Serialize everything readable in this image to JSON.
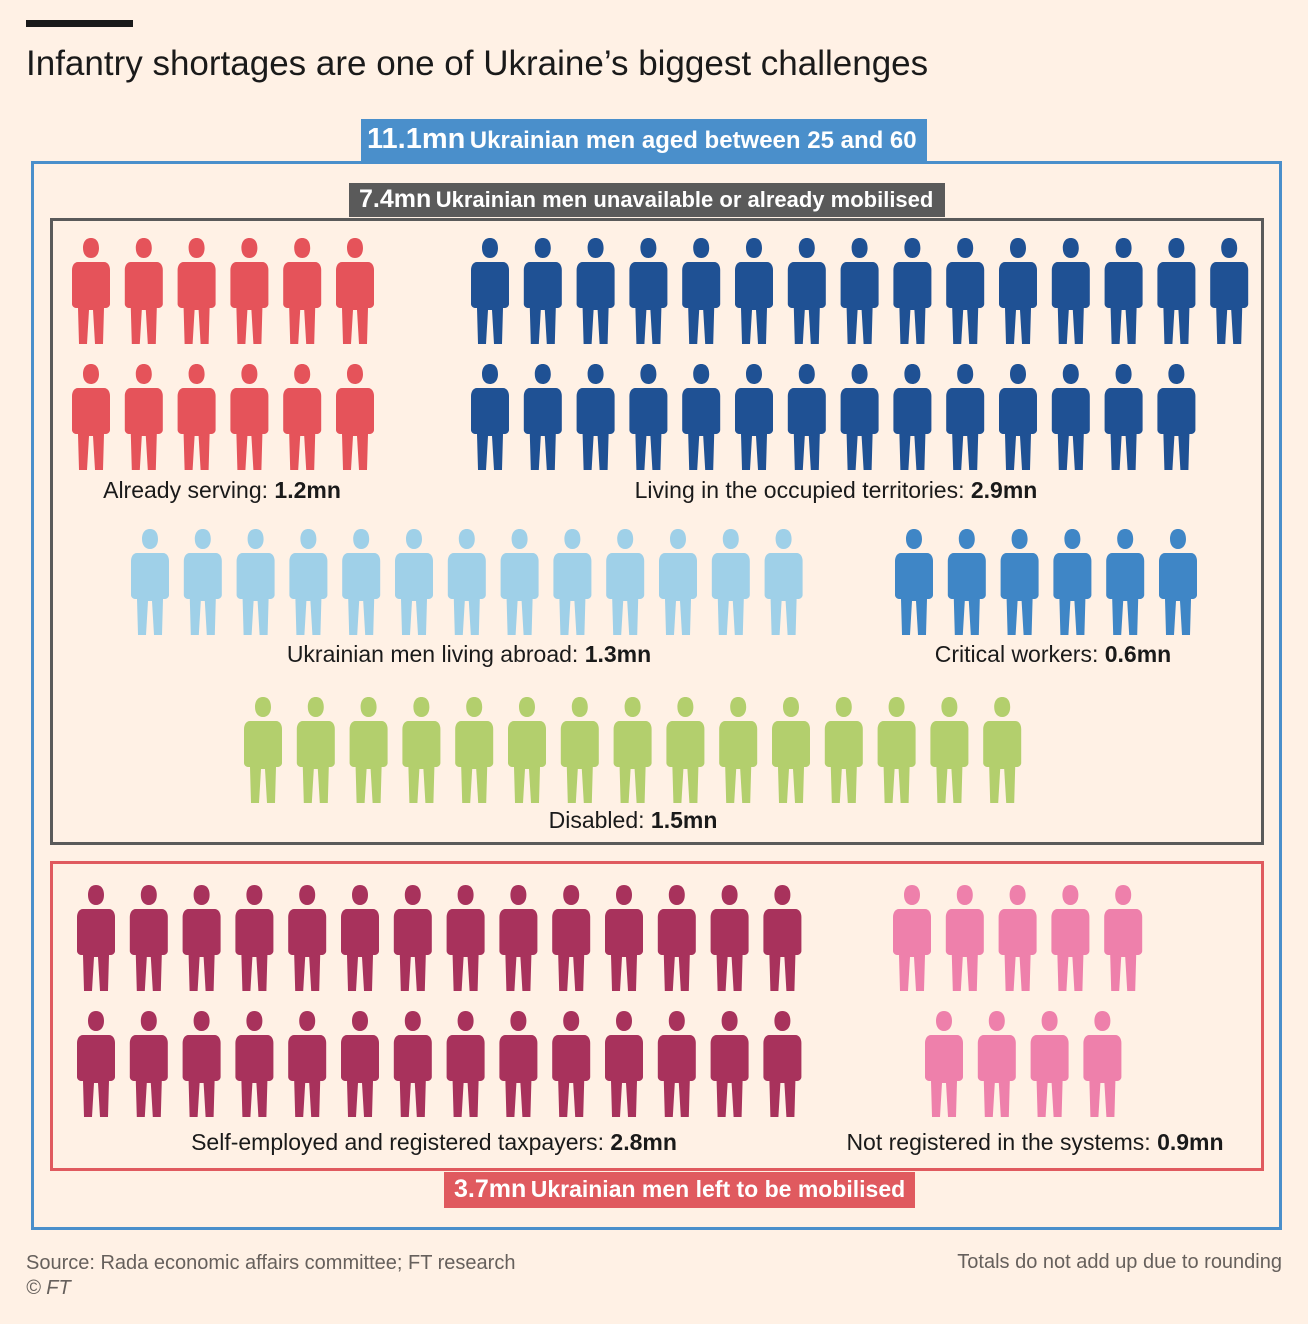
{
  "title": "Infantry shortages are one of Ukraine’s biggest challenges",
  "total": {
    "value": "11.1mn",
    "text": "Ukrainian men aged between 25 and 60"
  },
  "unavailable": {
    "value": "7.4mn",
    "text": "Ukrainian men unavailable or already mobilised"
  },
  "left_to_mobilise": {
    "value": "3.7mn",
    "text": "Ukrainian men left to be mobilised"
  },
  "source": "Source: Rada economic affairs committee; FT research",
  "credit": "© FT",
  "note": "Totals do not add up due to rounding",
  "colors": {
    "already_serving": "#e5535a",
    "occupied": "#1f5194",
    "abroad": "#9fd0e8",
    "critical": "#3f86c6",
    "disabled": "#b3cf6d",
    "self_employed": "#a8325c",
    "not_registered": "#ee80ab",
    "total_border": "#4a8fcb",
    "unavailable_border": "#5a5a5a",
    "left_border": "#e05a5f"
  },
  "chart_data": {
    "type": "pictogram",
    "groups": [
      {
        "id": "already_serving",
        "label": "Already serving: ",
        "value": "1.2mn",
        "millions": 1.2,
        "icons": 12
      },
      {
        "id": "occupied",
        "label": "Living in the occupied territories: ",
        "value": "2.9mn",
        "millions": 2.9,
        "icons": 29
      },
      {
        "id": "abroad",
        "label": "Ukrainian men living abroad: ",
        "value": "1.3mn",
        "millions": 1.3,
        "icons": 13
      },
      {
        "id": "critical",
        "label": "Critical workers: ",
        "value": "0.6mn",
        "millions": 0.6,
        "icons": 6
      },
      {
        "id": "disabled",
        "label": "Disabled: ",
        "value": "1.5mn",
        "millions": 1.5,
        "icons": 15
      },
      {
        "id": "self_employed",
        "label": "Self-employed and registered taxpayers: ",
        "value": "2.8mn",
        "millions": 2.8,
        "icons": 28
      },
      {
        "id": "not_registered",
        "label": "Not registered in the systems: ",
        "value": "0.9mn",
        "millions": 0.9,
        "icons": 9
      }
    ]
  }
}
